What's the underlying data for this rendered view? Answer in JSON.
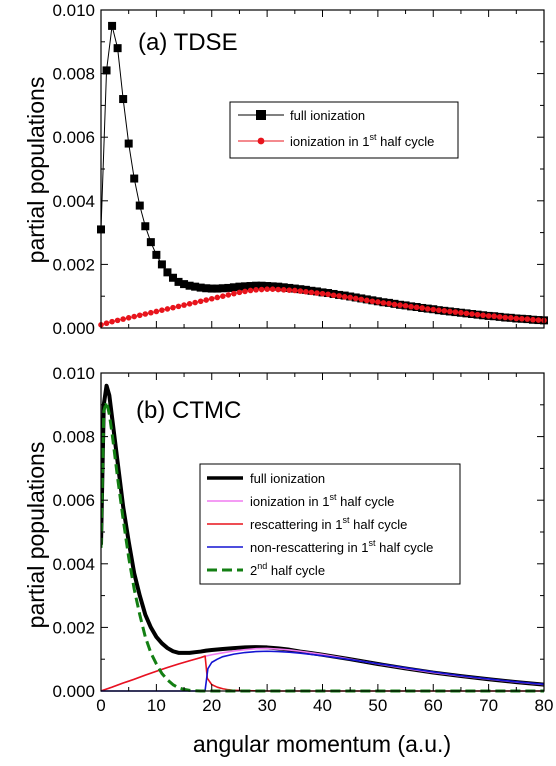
{
  "colors": {
    "black": "#000000",
    "red": "#e8141c",
    "pink": "#f07cf0",
    "blue": "#1414d2",
    "green": "#137f13"
  },
  "chart_data": [
    {
      "type": "scatter",
      "panel_label": "(a) TDSE",
      "ylabel": "partial populations",
      "xlabel": "",
      "xlim": [
        0,
        80
      ],
      "ylim": [
        0,
        0.01
      ],
      "xticks": [
        0,
        10,
        20,
        30,
        40,
        50,
        60,
        70,
        80
      ],
      "yticks": [
        "0.000",
        "0.002",
        "0.004",
        "0.006",
        "0.008",
        "0.010"
      ],
      "show_x_tick_labels": false,
      "legend_position": "upper right",
      "series": [
        {
          "name": "full ionization",
          "marker": "square",
          "color": "#000000",
          "x": [
            0,
            1,
            2,
            3,
            4,
            5,
            6,
            7,
            8,
            9,
            10,
            11,
            12,
            13,
            14,
            15,
            16,
            17,
            18,
            19,
            20,
            21,
            22,
            23,
            24,
            25,
            26,
            27,
            28,
            29,
            30,
            31,
            32,
            33,
            34,
            35,
            36,
            37,
            38,
            39,
            40,
            41,
            42,
            43,
            44,
            45,
            46,
            47,
            48,
            49,
            50,
            51,
            52,
            53,
            54,
            55,
            56,
            57,
            58,
            59,
            60,
            61,
            62,
            63,
            64,
            65,
            66,
            67,
            68,
            69,
            70,
            71,
            72,
            73,
            74,
            75,
            76,
            77,
            78,
            79,
            80
          ],
          "y": [
            0.0031,
            0.0081,
            0.0095,
            0.0088,
            0.0072,
            0.0058,
            0.0047,
            0.00385,
            0.0032,
            0.0027,
            0.0023,
            0.002,
            0.00175,
            0.00158,
            0.00145,
            0.00138,
            0.00133,
            0.0013,
            0.00127,
            0.00125,
            0.00124,
            0.00124,
            0.00125,
            0.00126,
            0.00128,
            0.0013,
            0.00131,
            0.00132,
            0.00133,
            0.00133,
            0.00132,
            0.00131,
            0.0013,
            0.00128,
            0.00126,
            0.00124,
            0.00122,
            0.0012,
            0.00117,
            0.00115,
            0.00112,
            0.0011,
            0.00107,
            0.00104,
            0.00102,
            0.00099,
            0.00096,
            0.00093,
            0.0009,
            0.00087,
            0.00084,
            0.00081,
            0.00079,
            0.00076,
            0.00073,
            0.00071,
            0.00068,
            0.00066,
            0.00063,
            0.00061,
            0.00059,
            0.00056,
            0.00054,
            0.00052,
            0.0005,
            0.00048,
            0.00046,
            0.00044,
            0.00042,
            0.0004,
            0.00038,
            0.00037,
            0.00035,
            0.00033,
            0.00032,
            0.0003,
            0.00029,
            0.00028,
            0.00026,
            0.00025,
            0.00024
          ]
        },
        {
          "name": "ionization in 1st half cycle",
          "name_main": "ionization in 1",
          "name_sup": "st",
          "name_rest": " half cycle",
          "marker": "circle",
          "color": "#e8141c",
          "x": [
            0,
            1,
            2,
            3,
            4,
            5,
            6,
            7,
            8,
            9,
            10,
            11,
            12,
            13,
            14,
            15,
            16,
            17,
            18,
            19,
            20,
            21,
            22,
            23,
            24,
            25,
            26,
            27,
            28,
            29,
            30,
            31,
            32,
            33,
            34,
            35,
            36,
            37,
            38,
            39,
            40,
            41,
            42,
            43,
            44,
            45,
            46,
            47,
            48,
            49,
            50,
            51,
            52,
            53,
            54,
            55,
            56,
            57,
            58,
            59,
            60,
            61,
            62,
            63,
            64,
            65,
            66,
            67,
            68,
            69,
            70,
            71,
            72,
            73,
            74,
            75,
            76,
            77,
            78,
            79,
            80
          ],
          "y": [
            0.0001,
            0.00015,
            0.0002,
            0.00024,
            0.00028,
            0.00032,
            0.00036,
            0.0004,
            0.00044,
            0.00048,
            0.00052,
            0.00056,
            0.0006,
            0.00064,
            0.00068,
            0.00072,
            0.00076,
            0.0008,
            0.00084,
            0.00088,
            0.00092,
            0.00096,
            0.001,
            0.00104,
            0.00108,
            0.00112,
            0.00115,
            0.00118,
            0.0012,
            0.00121,
            0.00122,
            0.00122,
            0.00121,
            0.0012,
            0.00119,
            0.00118,
            0.00116,
            0.00114,
            0.00112,
            0.0011,
            0.00108,
            0.00106,
            0.00103,
            0.00101,
            0.00098,
            0.00096,
            0.00093,
            0.0009,
            0.00087,
            0.00084,
            0.00082,
            0.00079,
            0.00077,
            0.00074,
            0.00072,
            0.0007,
            0.00067,
            0.00065,
            0.00063,
            0.0006,
            0.00058,
            0.00056,
            0.00054,
            0.00052,
            0.0005,
            0.00048,
            0.00046,
            0.00044,
            0.00042,
            0.0004,
            0.00038,
            0.00037,
            0.00035,
            0.00033,
            0.00032,
            0.0003,
            0.00029,
            0.00028,
            0.00026,
            0.00025,
            0.00024
          ]
        }
      ]
    },
    {
      "type": "line",
      "panel_label": "(b) CTMC",
      "ylabel": "partial populations",
      "xlabel": "angular momentum (a.u.)",
      "xlim": [
        0,
        80
      ],
      "ylim": [
        0,
        0.01
      ],
      "xticks": [
        0,
        10,
        20,
        30,
        40,
        50,
        60,
        70,
        80
      ],
      "yticks": [
        "0.000",
        "0.002",
        "0.004",
        "0.006",
        "0.008",
        "0.010"
      ],
      "show_x_tick_labels": true,
      "legend_position": "right",
      "series": [
        {
          "name": "full ionization",
          "style": "solid-thick",
          "color": "#000000",
          "x": [
            0,
            0.5,
            1,
            1.5,
            2,
            3,
            4,
            5,
            6,
            7,
            8,
            9,
            10,
            11,
            12,
            13,
            14,
            15,
            16,
            17,
            18,
            19,
            20,
            22,
            24,
            26,
            28,
            30,
            32,
            34,
            36,
            38,
            40,
            45,
            50,
            55,
            60,
            65,
            70,
            75,
            80
          ],
          "y": [
            0.0046,
            0.009,
            0.0096,
            0.0093,
            0.0086,
            0.0072,
            0.0058,
            0.0047,
            0.0037,
            0.003,
            0.0024,
            0.002,
            0.0017,
            0.0015,
            0.00135,
            0.00125,
            0.0012,
            0.0012,
            0.0012,
            0.00122,
            0.00124,
            0.00127,
            0.00129,
            0.00132,
            0.00135,
            0.00137,
            0.00138,
            0.00137,
            0.00134,
            0.0013,
            0.00124,
            0.00119,
            0.00114,
            0.001,
            0.00085,
            0.00071,
            0.00058,
            0.00047,
            0.00037,
            0.00028,
            0.0002
          ]
        },
        {
          "name": "ionization in 1st half cycle",
          "name_main": "ionization in 1",
          "name_sup": "st",
          "name_rest": " half cycle",
          "style": "solid",
          "color": "#f07cf0",
          "x": [
            0,
            2,
            4,
            6,
            8,
            10,
            12,
            14,
            16,
            18,
            19,
            20,
            22,
            24,
            26,
            28,
            30,
            32,
            34,
            36,
            38,
            40,
            45,
            50,
            55,
            60,
            65,
            70,
            75,
            80
          ],
          "y": [
            0.0,
            0.00012,
            0.00025,
            0.00037,
            0.0005,
            0.00062,
            0.00074,
            0.00085,
            0.00095,
            0.00105,
            0.0011,
            0.00114,
            0.0012,
            0.00126,
            0.0013,
            0.00133,
            0.00134,
            0.00132,
            0.00129,
            0.00125,
            0.0012,
            0.00115,
            0.001,
            0.00085,
            0.00071,
            0.00058,
            0.00047,
            0.00037,
            0.00028,
            0.0002
          ]
        },
        {
          "name": "rescattering in 1st half cycle",
          "name_main": "rescattering in 1",
          "name_sup": "st",
          "name_rest": " half cycle",
          "style": "solid",
          "color": "#e8141c",
          "x": [
            0,
            2,
            4,
            6,
            8,
            10,
            12,
            14,
            16,
            18,
            18.8,
            19.2,
            20,
            21,
            22,
            23,
            24,
            26,
            30,
            40,
            60,
            80
          ],
          "y": [
            0.0,
            0.00012,
            0.00025,
            0.00037,
            0.0005,
            0.00062,
            0.00074,
            0.00085,
            0.00095,
            0.00105,
            0.0011,
            0.0004,
            0.0002,
            0.00012,
            7e-05,
            4e-05,
            2e-05,
            1e-05,
            0.0,
            0.0,
            0.0,
            0.0
          ]
        },
        {
          "name": "non-rescattering in 1st half cycle",
          "name_main": "non-rescattering in 1",
          "name_sup": "st",
          "name_rest": " half cycle",
          "style": "solid",
          "color": "#1414d2",
          "x": [
            0,
            10,
            18,
            18.8,
            19.3,
            20,
            21,
            22,
            24,
            26,
            28,
            30,
            32,
            34,
            36,
            38,
            40,
            45,
            50,
            55,
            60,
            65,
            70,
            75,
            80
          ],
          "y": [
            0.0,
            0.0,
            0.0,
            2e-05,
            0.0007,
            0.0009,
            0.001,
            0.00108,
            0.00116,
            0.00121,
            0.00124,
            0.00125,
            0.00124,
            0.00122,
            0.00119,
            0.00115,
            0.00111,
            0.00099,
            0.00086,
            0.00073,
            0.0006,
            0.00048,
            0.00038,
            0.00029,
            0.00021
          ]
        },
        {
          "name": "2nd half cycle",
          "name_main": "2",
          "name_sup": "nd",
          "name_rest": " half cycle",
          "style": "dashed-thick",
          "color": "#137f13",
          "x": [
            0,
            0.5,
            1,
            1.5,
            2,
            3,
            4,
            5,
            6,
            7,
            8,
            9,
            10,
            11,
            12,
            13,
            14,
            15,
            16,
            17,
            18,
            19,
            20,
            25,
            30,
            40,
            50,
            60,
            70,
            80
          ],
          "y": [
            0.0045,
            0.0088,
            0.0091,
            0.0087,
            0.0081,
            0.0067,
            0.0054,
            0.0042,
            0.0032,
            0.0024,
            0.0017,
            0.0012,
            0.00085,
            0.00055,
            0.00035,
            0.0002,
            0.0001,
            5e-05,
            2e-05,
            1e-05,
            0.0,
            0.0,
            0.0,
            0.0,
            0.0,
            0.0,
            0.0,
            0.0,
            0.0,
            0.0
          ]
        }
      ]
    }
  ]
}
